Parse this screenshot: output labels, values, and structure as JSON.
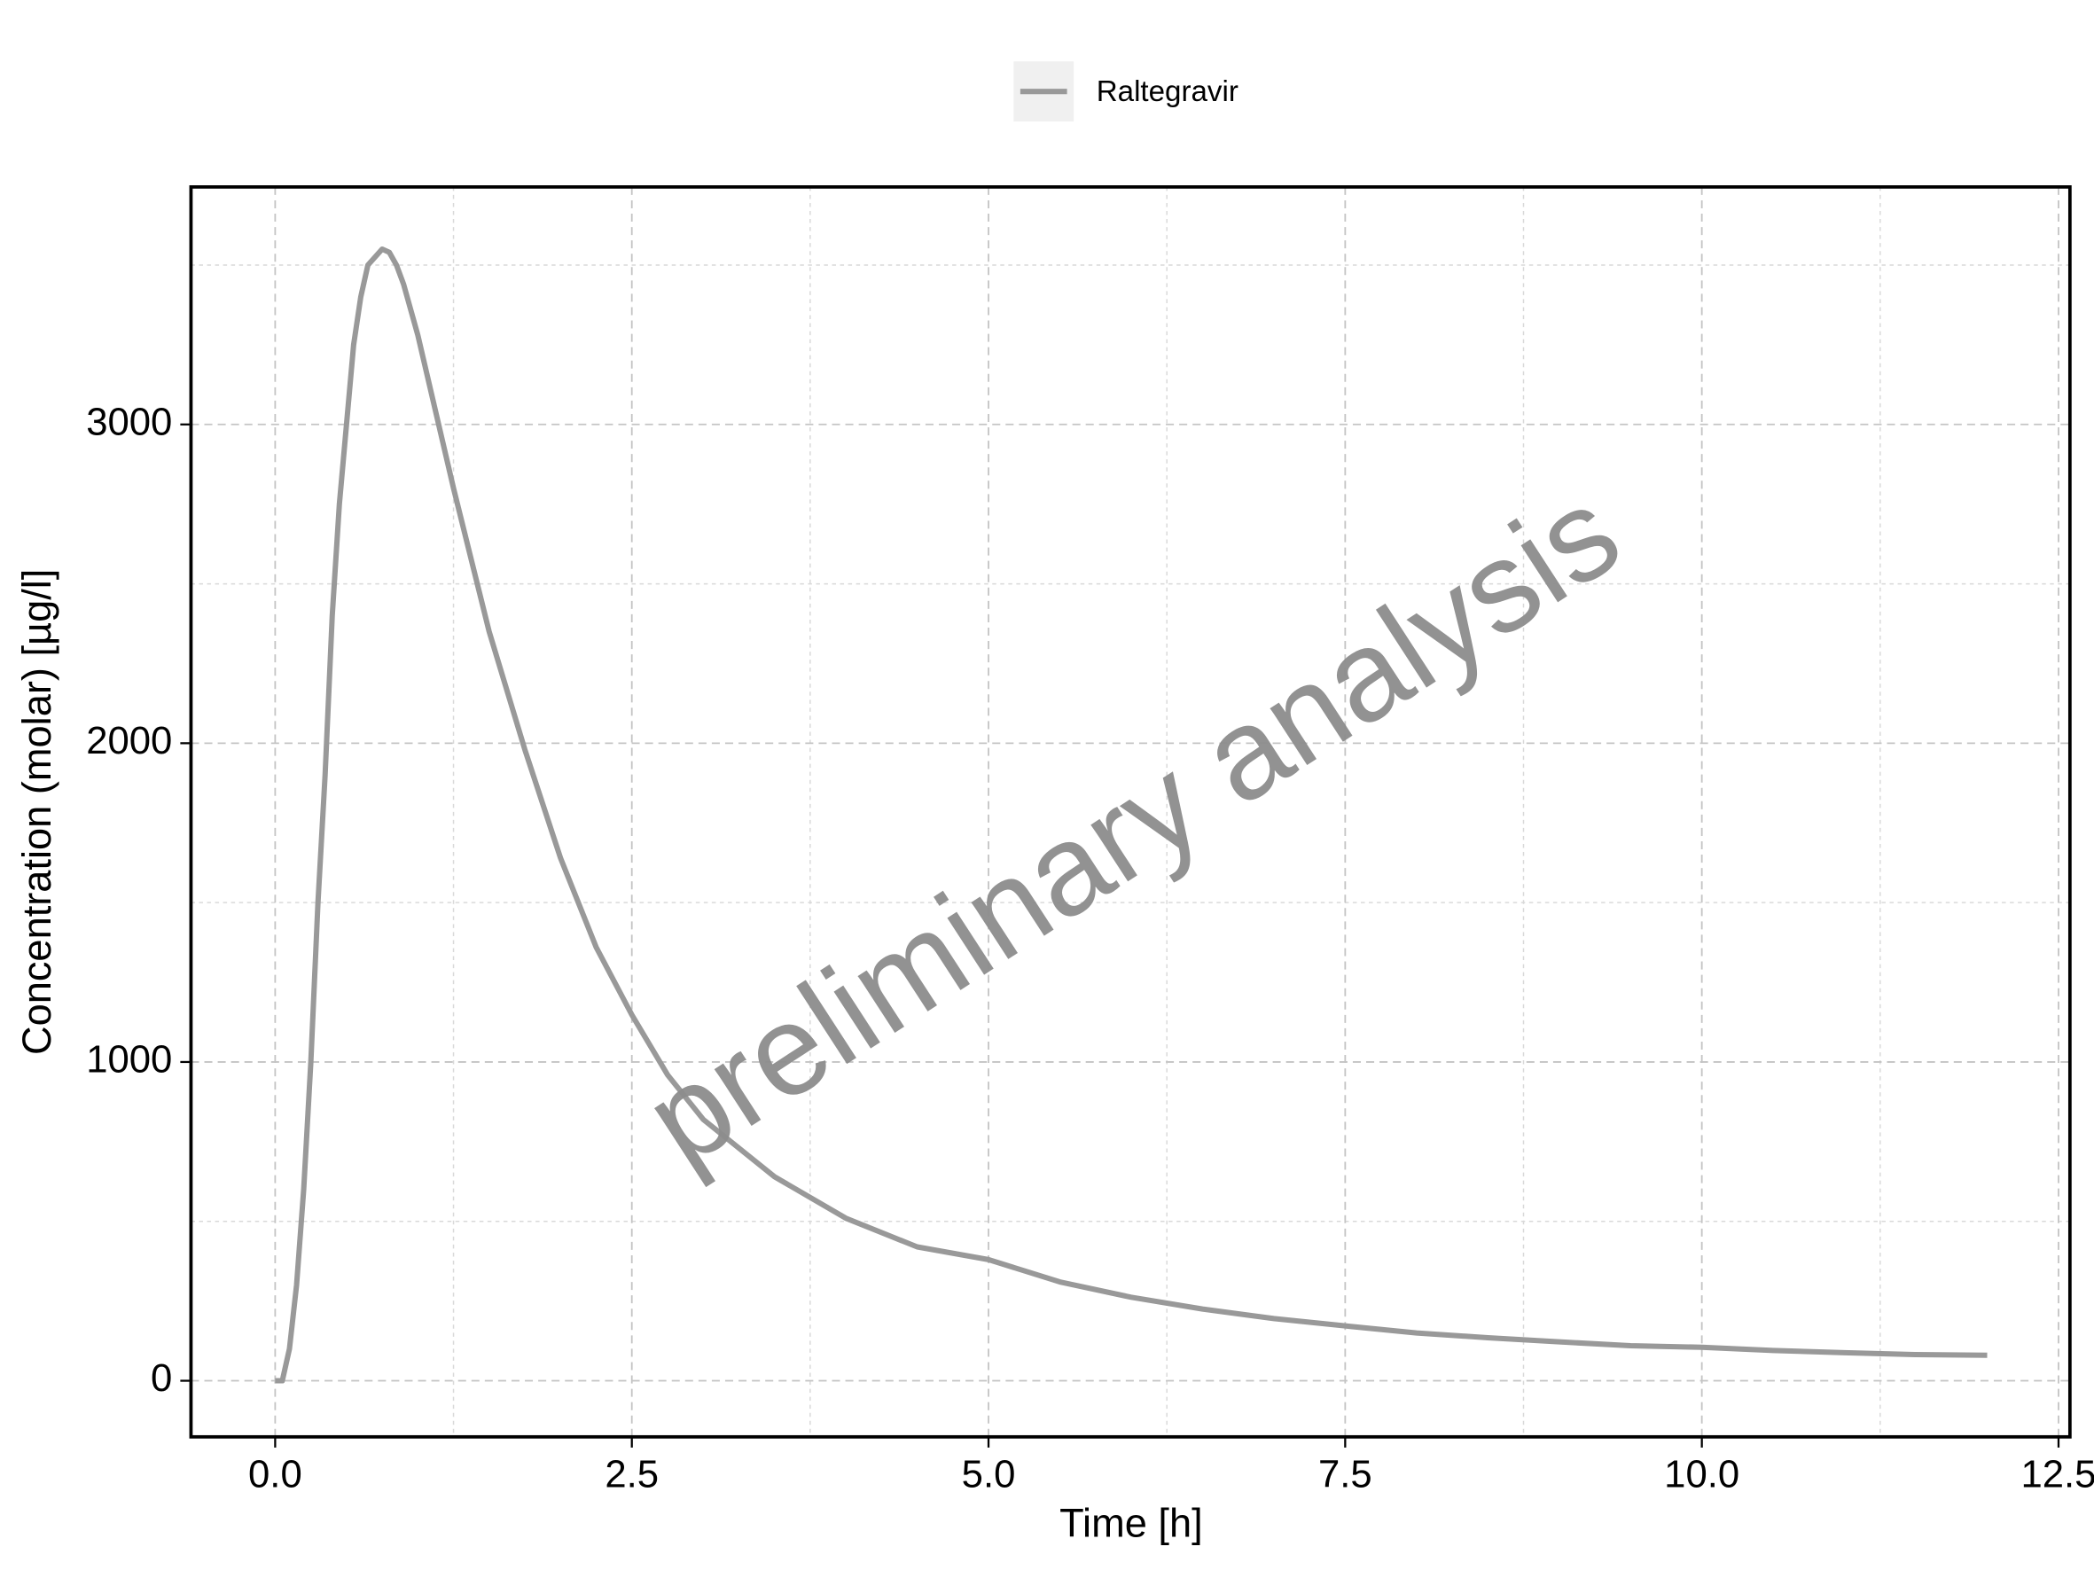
{
  "chart_data": {
    "type": "line",
    "xlabel": "Time [h]",
    "ylabel": "Concentration (molar) [µg/l]",
    "watermark": "preliminary analysis",
    "legend_position": "top",
    "grid": true,
    "xlim": [
      -0.59,
      12.58
    ],
    "ylim": [
      -176,
      3745
    ],
    "xticks": [
      {
        "value": 0,
        "label": "0.0"
      },
      {
        "value": 2.5,
        "label": "2.5"
      },
      {
        "value": 5,
        "label": "5.0"
      },
      {
        "value": 7.5,
        "label": "7.5"
      },
      {
        "value": 10,
        "label": "10.0"
      },
      {
        "value": 12.5,
        "label": "12.5"
      }
    ],
    "yticks": [
      0,
      1000,
      2000,
      3000
    ],
    "xminor_ticks": [
      1.25,
      3.75,
      6.25,
      8.75,
      11.25
    ],
    "yminor_ticks": [
      500,
      1500,
      2500,
      3500
    ],
    "x": [
      0,
      0.05,
      0.1,
      0.15,
      0.2,
      0.25,
      0.3,
      0.35,
      0.4,
      0.45,
      0.5,
      0.55,
      0.6,
      0.65,
      0.75,
      0.8,
      0.85,
      0.9,
      1.0,
      1.25,
      1.5,
      1.75,
      2.0,
      2.25,
      2.5,
      2.75,
      3.0,
      3.5,
      4.0,
      4.5,
      5.0,
      5.5,
      6.0,
      6.5,
      7.0,
      7.5,
      8.0,
      8.5,
      9.0,
      9.5,
      10.0,
      10.5,
      11.0,
      11.5,
      12.0
    ],
    "series": [
      {
        "name": "Raltegravir",
        "color": "#999999",
        "values": [
          0,
          0,
          100,
          300,
          600,
          1000,
          1500,
          1900,
          2400,
          2750,
          3000,
          3250,
          3400,
          3500,
          3550,
          3540,
          3500,
          3440,
          3280,
          2800,
          2350,
          1980,
          1640,
          1360,
          1148,
          960,
          820,
          640,
          510,
          420,
          380,
          310,
          262,
          225,
          195,
          172,
          150,
          135,
          122,
          110,
          105,
          95,
          88,
          82,
          80
        ]
      }
    ]
  }
}
